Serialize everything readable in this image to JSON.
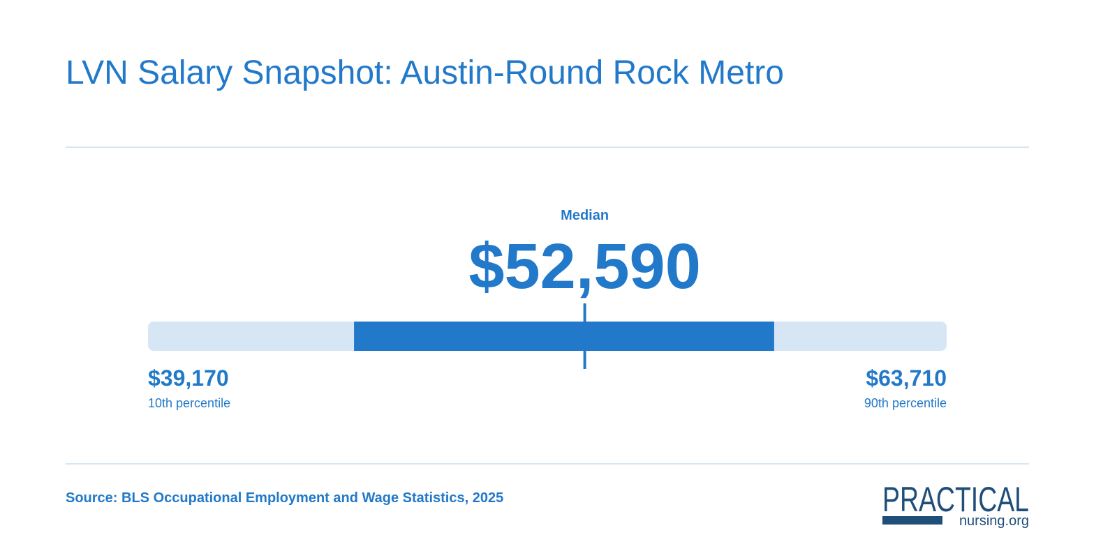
{
  "chart_data": {
    "type": "range",
    "title": "LVN Salary Snapshot: Austin-Round Rock Metro",
    "markers": [
      {
        "name": "10th percentile",
        "value": 39170,
        "value_label": "$39,170"
      },
      {
        "name": "Median",
        "value": 52590,
        "value_label": "$52,590"
      },
      {
        "name": "90th percentile",
        "value": 63710,
        "value_label": "$63,710"
      }
    ],
    "band": [
      45500,
      58410
    ],
    "color": "#2279c9",
    "track_color": "#d7e6f5",
    "source": "Source: BLS Occupational Employment and Wage Statistics, 2025"
  },
  "logo": {
    "main": "PRACTICAL",
    "sub": "nursing.org"
  }
}
